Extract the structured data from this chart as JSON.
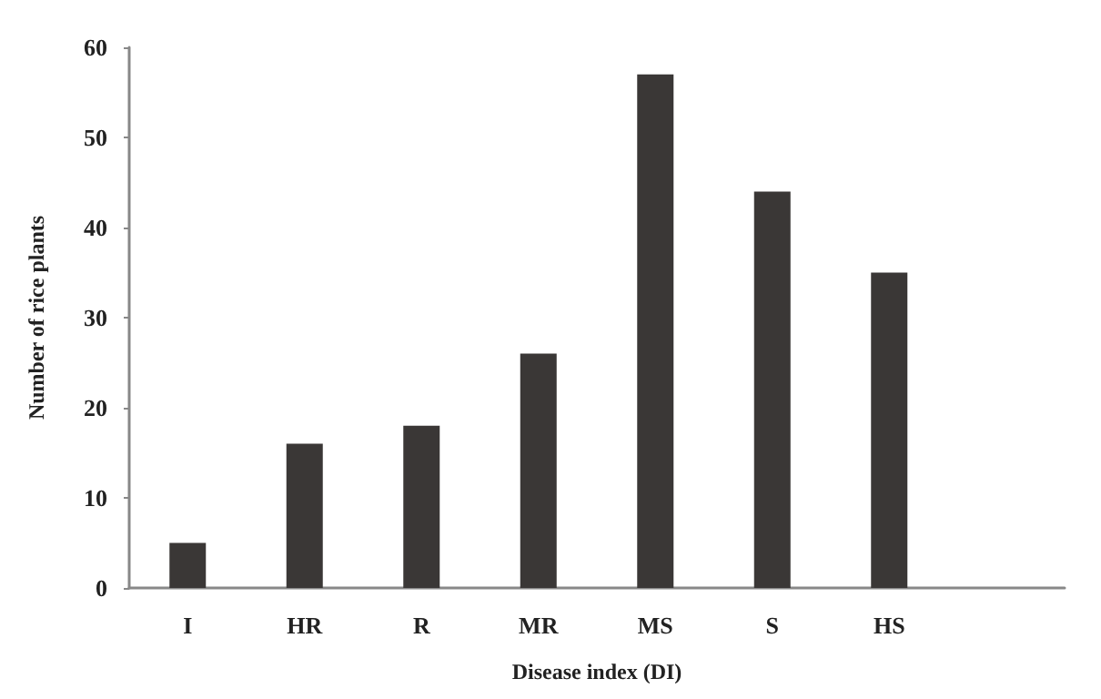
{
  "chart_data": {
    "type": "bar",
    "xlabel": "Disease index (DI)",
    "ylabel": "Number of rice plants",
    "categories": [
      "I",
      "HR",
      "R",
      "MR",
      "MS",
      "S",
      "HS",
      null
    ],
    "values": [
      5,
      16,
      18,
      26,
      57,
      44,
      35,
      null
    ],
    "color": "#3a3736",
    "ylim": [
      0,
      60
    ],
    "yticks": [
      0,
      10,
      20,
      30,
      40,
      50,
      60
    ],
    "grid": false
  }
}
